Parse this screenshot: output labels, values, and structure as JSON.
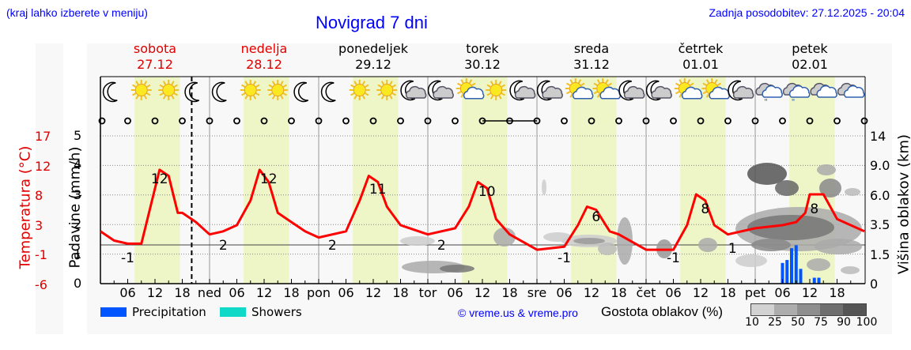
{
  "header": {
    "location_hint": "(kraj lahko izberete v meniju)",
    "title": "Novigrad 7 dni",
    "last_update": "Zadnja posodobitev: 27.12.2025 - 20:04"
  },
  "days": [
    {
      "name": "sobota",
      "date": "27.12",
      "weekend": true
    },
    {
      "name": "nedelja",
      "date": "28.12",
      "weekend": true
    },
    {
      "name": "ponedeljek",
      "date": "29.12",
      "weekend": false
    },
    {
      "name": "torek",
      "date": "30.12",
      "weekend": false
    },
    {
      "name": "sreda",
      "date": "31.12",
      "weekend": false
    },
    {
      "name": "četrtek",
      "date": "01.01",
      "weekend": false
    },
    {
      "name": "petek",
      "date": "02.01",
      "weekend": false
    }
  ],
  "axes": {
    "temp_label": "Temperatura (°C)",
    "precip_label": "Padavine (mm/h)",
    "cloud_height_label": "Višina oblakov (km)",
    "temp_ticks": [
      "17",
      "12",
      "8",
      "3",
      "-1",
      "-6"
    ],
    "precip_ticks": [
      "5",
      "4",
      "3",
      "2",
      "1",
      "0"
    ],
    "cloud_ticks": [
      "14",
      "9.0",
      "6.0",
      "3.5",
      "1.5",
      "0"
    ],
    "x_ticks": [
      "06",
      "12",
      "18",
      "ned",
      "06",
      "12",
      "18",
      "pon",
      "06",
      "12",
      "18",
      "tor",
      "06",
      "12",
      "18",
      "sre",
      "06",
      "12",
      "18",
      "čet",
      "06",
      "12",
      "18",
      "pet",
      "06",
      "12",
      "18"
    ]
  },
  "legend": {
    "precipitation": "Precipitation",
    "showers": "Showers",
    "credit": "© vreme.us & vreme.pro",
    "cloud_density_label": "Gostota oblakov (%)",
    "cloud_density_ticks": [
      "10",
      "25",
      "50",
      "75",
      "90",
      "100"
    ]
  },
  "colors": {
    "temperature": "#ff0000",
    "precipitation": "#0055ff",
    "showers": "#11d9c8",
    "daylight": "#eef6c8",
    "link": "#0000ff"
  },
  "icons": [
    "moon",
    "sun",
    "sun",
    "moon",
    "moon",
    "sun",
    "sun",
    "moon",
    "moon",
    "sun",
    "sun",
    "moon-cloud",
    "moon-cloud",
    "sun-cloud",
    "sun",
    "moon-cloud",
    "moon-cloud",
    "sun-cloud",
    "sun-cloud",
    "moon-cloud",
    "moon-cloud",
    "sun-cloud",
    "sun-cloud",
    "moon-cloud",
    "cloud-rain",
    "cloud-rain",
    "cloud",
    "cloud"
  ],
  "chart_data": {
    "type": "line",
    "title": "Novigrad 7 dni",
    "xlabel": "",
    "ylabel": "Temperatura (°C)",
    "ylim": [
      -6,
      17
    ],
    "y2label": "Padavine (mm/h)",
    "y2lim": [
      0,
      5
    ],
    "y3label": "Višina oblakov (km)",
    "series": [
      {
        "name": "Temperatura",
        "x_hours": [
          0,
          3,
          6,
          9,
          11,
          13,
          15,
          17,
          18,
          21,
          24,
          27,
          30,
          33,
          35,
          37,
          39,
          42,
          45,
          48,
          54,
          57,
          59,
          61,
          63,
          66,
          72,
          78,
          81,
          83,
          85,
          87,
          90,
          96,
          102,
          105,
          107,
          109,
          112,
          114,
          120,
          126,
          129,
          131,
          133,
          135,
          138,
          144,
          150,
          153,
          155,
          156,
          159,
          162,
          168
        ],
        "values": [
          2,
          0.5,
          0,
          0,
          6,
          12,
          11,
          5,
          5,
          3.5,
          1.5,
          2,
          3,
          7,
          12,
          10,
          5,
          3.5,
          2,
          1,
          2,
          7,
          11,
          10,
          6,
          3,
          1.5,
          2.5,
          6,
          10,
          9,
          4,
          1.5,
          -1,
          -0.5,
          3,
          6,
          5.5,
          2,
          1.5,
          -1,
          -1,
          3,
          8,
          7,
          3,
          1.5,
          2.5,
          3,
          3.5,
          5,
          8,
          8,
          4,
          2
        ]
      },
      {
        "name": "Precipitation",
        "x_hours": [
          150,
          151,
          152,
          153,
          154,
          155,
          157,
          158
        ],
        "values": [
          0.7,
          0.8,
          1.2,
          1.3,
          0.5,
          0,
          0.2,
          0.2
        ]
      }
    ],
    "annotations": [
      {
        "label": "-1",
        "x_hour": 6
      },
      {
        "label": "12",
        "x_hour": 13
      },
      {
        "label": "2",
        "x_hour": 27
      },
      {
        "label": "12",
        "x_hour": 37
      },
      {
        "label": "2",
        "x_hour": 51
      },
      {
        "label": "11",
        "x_hour": 61
      },
      {
        "label": "2",
        "x_hour": 75
      },
      {
        "label": "10",
        "x_hour": 85
      },
      {
        "label": "-1",
        "x_hour": 102
      },
      {
        "label": "6",
        "x_hour": 109
      },
      {
        "label": "-1",
        "x_hour": 126
      },
      {
        "label": "8",
        "x_hour": 133
      },
      {
        "label": "1",
        "x_hour": 139
      },
      {
        "label": "8",
        "x_hour": 157
      }
    ],
    "now_marker_hour": 20.07,
    "grid": true,
    "legend_position": "bottom"
  }
}
